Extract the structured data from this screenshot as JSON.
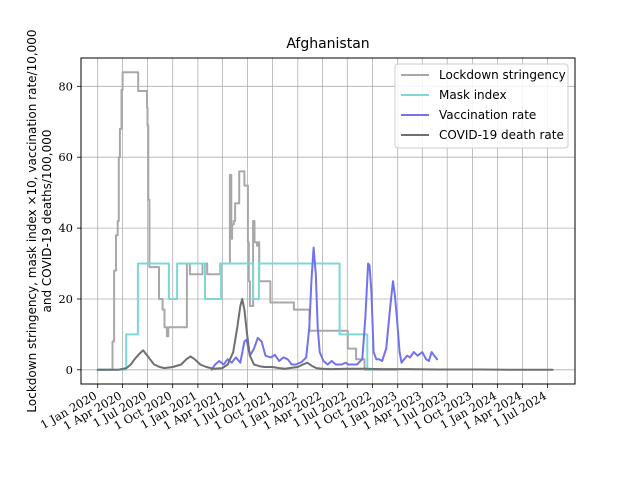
{
  "chart_data": {
    "type": "line",
    "title": "Afghanistan",
    "xlabel": "",
    "ylabel_lines": [
      "Lockdown stringency, mask index ×10, vaccination rate/10,000",
      "and COVID-19 deaths/100,000"
    ],
    "xlim": [
      "2019-11-01",
      "2024-10-10"
    ],
    "ylim": [
      -4,
      88
    ],
    "grid": true,
    "legend_position": "top-right",
    "x_ticks": [
      {
        "date": "2020-01-01",
        "label": "1 Jan 2020"
      },
      {
        "date": "2020-04-01",
        "label": "1 Apr 2020"
      },
      {
        "date": "2020-07-01",
        "label": "1 Jul 2020"
      },
      {
        "date": "2020-10-01",
        "label": "1 Oct 2020"
      },
      {
        "date": "2021-01-01",
        "label": "1 Jan 2021"
      },
      {
        "date": "2021-04-01",
        "label": "1 Apr 2021"
      },
      {
        "date": "2021-07-01",
        "label": "1 Jul 2021"
      },
      {
        "date": "2021-10-01",
        "label": "1 Oct 2021"
      },
      {
        "date": "2022-01-01",
        "label": "1 Jan 2022"
      },
      {
        "date": "2022-04-01",
        "label": "1 Apr 2022"
      },
      {
        "date": "2022-07-01",
        "label": "1 Jul 2022"
      },
      {
        "date": "2022-10-01",
        "label": "1 Oct 2022"
      },
      {
        "date": "2023-01-01",
        "label": "1 Jan 2023"
      },
      {
        "date": "2023-04-01",
        "label": "1 Apr 2023"
      },
      {
        "date": "2023-07-01",
        "label": "1 Jul 2023"
      },
      {
        "date": "2023-10-01",
        "label": "1 Oct 2023"
      },
      {
        "date": "2024-01-01",
        "label": "1 Jan 2024"
      },
      {
        "date": "2024-04-01",
        "label": "1 Apr 2024"
      },
      {
        "date": "2024-07-01",
        "label": "1 Jul 2024"
      }
    ],
    "y_ticks": [
      0,
      20,
      40,
      60,
      80
    ],
    "series": [
      {
        "name": "Lockdown stringency",
        "color": "#a8a8a8",
        "step": true,
        "points": [
          [
            "2020-01-01",
            0
          ],
          [
            "2020-02-20",
            0
          ],
          [
            "2020-02-24",
            8
          ],
          [
            "2020-03-01",
            28
          ],
          [
            "2020-03-08",
            38
          ],
          [
            "2020-03-14",
            42
          ],
          [
            "2020-03-18",
            60
          ],
          [
            "2020-03-22",
            68
          ],
          [
            "2020-03-28",
            79
          ],
          [
            "2020-04-01",
            84
          ],
          [
            "2020-05-25",
            84
          ],
          [
            "2020-05-28",
            78.7
          ],
          [
            "2020-06-25",
            78.7
          ],
          [
            "2020-06-29",
            74
          ],
          [
            "2020-07-01",
            69
          ],
          [
            "2020-07-04",
            48
          ],
          [
            "2020-07-08",
            29
          ],
          [
            "2020-08-10",
            29
          ],
          [
            "2020-08-12",
            20
          ],
          [
            "2020-08-25",
            17
          ],
          [
            "2020-09-01",
            12
          ],
          [
            "2020-09-10",
            9.5
          ],
          [
            "2020-09-15",
            12
          ],
          [
            "2020-11-20",
            12
          ],
          [
            "2020-11-22",
            30
          ],
          [
            "2020-12-01",
            30
          ],
          [
            "2020-12-03",
            27
          ],
          [
            "2021-01-15",
            27
          ],
          [
            "2021-01-18",
            30
          ],
          [
            "2021-02-01",
            30
          ],
          [
            "2021-02-04",
            27
          ],
          [
            "2021-03-20",
            27
          ],
          [
            "2021-03-24",
            30
          ],
          [
            "2021-04-25",
            30
          ],
          [
            "2021-04-28",
            55
          ],
          [
            "2021-05-03",
            37
          ],
          [
            "2021-05-06",
            41
          ],
          [
            "2021-05-12",
            42
          ],
          [
            "2021-05-17",
            47
          ],
          [
            "2021-06-01",
            56
          ],
          [
            "2021-06-20",
            52
          ],
          [
            "2021-07-01",
            52
          ],
          [
            "2021-07-03",
            36
          ],
          [
            "2021-07-06",
            25
          ],
          [
            "2021-07-10",
            18
          ],
          [
            "2021-07-20",
            18
          ],
          [
            "2021-07-22",
            42
          ],
          [
            "2021-07-27",
            36
          ],
          [
            "2021-08-05",
            35
          ],
          [
            "2021-08-10",
            36
          ],
          [
            "2021-08-13",
            25
          ],
          [
            "2021-09-20",
            25
          ],
          [
            "2021-09-23",
            19
          ],
          [
            "2021-12-15",
            19
          ],
          [
            "2021-12-18",
            17
          ],
          [
            "2022-02-10",
            17
          ],
          [
            "2022-02-13",
            11
          ],
          [
            "2022-07-01",
            11
          ],
          [
            "2022-07-03",
            6
          ],
          [
            "2022-07-30",
            6
          ],
          [
            "2022-08-02",
            3
          ],
          [
            "2022-08-30",
            3
          ],
          [
            "2022-09-02",
            0
          ],
          [
            "2023-01-01",
            0
          ]
        ]
      },
      {
        "name": "Mask index",
        "color": "#7bd8d6",
        "step": true,
        "points": [
          [
            "2020-01-01",
            0
          ],
          [
            "2020-04-12",
            0
          ],
          [
            "2020-04-14",
            10
          ],
          [
            "2020-05-25",
            10
          ],
          [
            "2020-05-27",
            30
          ],
          [
            "2020-09-15",
            30
          ],
          [
            "2020-09-17",
            20
          ],
          [
            "2020-10-15",
            20
          ],
          [
            "2020-10-17",
            30
          ],
          [
            "2021-01-25",
            30
          ],
          [
            "2021-01-27",
            20
          ],
          [
            "2021-03-25",
            20
          ],
          [
            "2021-03-27",
            30
          ],
          [
            "2021-07-20",
            30
          ],
          [
            "2021-07-22",
            20
          ],
          [
            "2021-08-10",
            20
          ],
          [
            "2021-08-12",
            30
          ],
          [
            "2022-06-01",
            30
          ],
          [
            "2022-06-03",
            10
          ],
          [
            "2022-09-10",
            10
          ],
          [
            "2022-09-12",
            0
          ],
          [
            "2022-09-30",
            0
          ]
        ]
      },
      {
        "name": "Vaccination rate",
        "color": "#7272f0",
        "step": false,
        "points": [
          [
            "2021-02-20",
            0
          ],
          [
            "2021-03-05",
            1.5
          ],
          [
            "2021-03-20",
            2.5
          ],
          [
            "2021-04-05",
            1.5
          ],
          [
            "2021-04-20",
            3
          ],
          [
            "2021-05-05",
            2
          ],
          [
            "2021-05-20",
            3.5
          ],
          [
            "2021-06-05",
            2
          ],
          [
            "2021-06-20",
            8
          ],
          [
            "2021-06-28",
            8.5
          ],
          [
            "2021-07-10",
            4
          ],
          [
            "2021-07-25",
            6
          ],
          [
            "2021-08-08",
            9
          ],
          [
            "2021-08-22",
            8
          ],
          [
            "2021-09-05",
            4
          ],
          [
            "2021-09-25",
            3.5
          ],
          [
            "2021-10-10",
            4.2
          ],
          [
            "2021-10-25",
            2.5
          ],
          [
            "2021-11-10",
            3.5
          ],
          [
            "2021-11-25",
            3
          ],
          [
            "2021-12-10",
            1.5
          ],
          [
            "2021-12-25",
            1.5
          ],
          [
            "2022-01-15",
            2.2
          ],
          [
            "2022-02-01",
            3.5
          ],
          [
            "2022-02-12",
            12
          ],
          [
            "2022-02-20",
            25
          ],
          [
            "2022-02-28",
            34.5
          ],
          [
            "2022-03-08",
            27
          ],
          [
            "2022-03-15",
            12
          ],
          [
            "2022-03-22",
            5
          ],
          [
            "2022-04-05",
            2.5
          ],
          [
            "2022-04-20",
            1.5
          ],
          [
            "2022-05-05",
            2.5
          ],
          [
            "2022-05-20",
            1.5
          ],
          [
            "2022-06-10",
            1.5
          ],
          [
            "2022-06-25",
            2
          ],
          [
            "2022-07-05",
            1.5
          ],
          [
            "2022-07-20",
            1.5
          ],
          [
            "2022-08-05",
            1.5
          ],
          [
            "2022-08-25",
            3
          ],
          [
            "2022-09-05",
            15
          ],
          [
            "2022-09-15",
            30
          ],
          [
            "2022-09-20",
            29.5
          ],
          [
            "2022-09-27",
            22
          ],
          [
            "2022-10-05",
            5
          ],
          [
            "2022-10-15",
            3
          ],
          [
            "2022-10-25",
            3
          ],
          [
            "2022-11-05",
            2.5
          ],
          [
            "2022-11-20",
            6
          ],
          [
            "2022-12-05",
            18
          ],
          [
            "2022-12-15",
            25
          ],
          [
            "2022-12-22",
            21
          ],
          [
            "2022-12-30",
            14
          ],
          [
            "2023-01-08",
            5
          ],
          [
            "2023-01-15",
            2
          ],
          [
            "2023-01-25",
            3
          ],
          [
            "2023-02-05",
            4
          ],
          [
            "2023-02-15",
            3.5
          ],
          [
            "2023-03-01",
            5
          ],
          [
            "2023-03-15",
            4
          ],
          [
            "2023-04-01",
            5
          ],
          [
            "2023-04-15",
            3
          ],
          [
            "2023-04-25",
            2.5
          ],
          [
            "2023-05-05",
            5
          ],
          [
            "2023-05-15",
            4
          ],
          [
            "2023-05-25",
            3
          ]
        ]
      },
      {
        "name": "COVID-19 death rate",
        "color": "#6f6f6f",
        "step": false,
        "points": [
          [
            "2020-01-01",
            0
          ],
          [
            "2020-03-15",
            0
          ],
          [
            "2020-04-15",
            0.5
          ],
          [
            "2020-05-01",
            1.5
          ],
          [
            "2020-05-15",
            3
          ],
          [
            "2020-06-01",
            4.5
          ],
          [
            "2020-06-15",
            5.5
          ],
          [
            "2020-06-25",
            4.5
          ],
          [
            "2020-07-10",
            3
          ],
          [
            "2020-07-25",
            1.5
          ],
          [
            "2020-08-15",
            0.8
          ],
          [
            "2020-09-01",
            0.5
          ],
          [
            "2020-10-01",
            0.8
          ],
          [
            "2020-11-01",
            1.5
          ],
          [
            "2020-11-20",
            3
          ],
          [
            "2020-12-05",
            3.8
          ],
          [
            "2020-12-20",
            3
          ],
          [
            "2021-01-10",
            1.5
          ],
          [
            "2021-02-01",
            0.8
          ],
          [
            "2021-03-01",
            0.3
          ],
          [
            "2021-04-01",
            0.5
          ],
          [
            "2021-04-20",
            1.5
          ],
          [
            "2021-05-10",
            5
          ],
          [
            "2021-05-25",
            12
          ],
          [
            "2021-06-05",
            18
          ],
          [
            "2021-06-12",
            20
          ],
          [
            "2021-06-20",
            17
          ],
          [
            "2021-06-30",
            10
          ],
          [
            "2021-07-10",
            4
          ],
          [
            "2021-07-25",
            1.5
          ],
          [
            "2021-08-15",
            1
          ],
          [
            "2021-09-01",
            0.8
          ],
          [
            "2021-10-01",
            0.8
          ],
          [
            "2021-10-25",
            0.5
          ],
          [
            "2021-11-15",
            0.3
          ],
          [
            "2021-12-01",
            0.5
          ],
          [
            "2022-01-01",
            0.8
          ],
          [
            "2022-01-20",
            1.5
          ],
          [
            "2022-02-05",
            2
          ],
          [
            "2022-02-20",
            1.2
          ],
          [
            "2022-03-10",
            0.5
          ],
          [
            "2022-04-01",
            0.3
          ],
          [
            "2022-05-01",
            0.2
          ],
          [
            "2022-07-01",
            0.3
          ],
          [
            "2022-09-01",
            0.3
          ],
          [
            "2022-11-01",
            0.2
          ],
          [
            "2023-02-01",
            0.2
          ],
          [
            "2023-06-01",
            0.1
          ],
          [
            "2023-11-01",
            0.1
          ],
          [
            "2024-03-01",
            0
          ],
          [
            "2024-07-20",
            0
          ]
        ]
      }
    ]
  }
}
